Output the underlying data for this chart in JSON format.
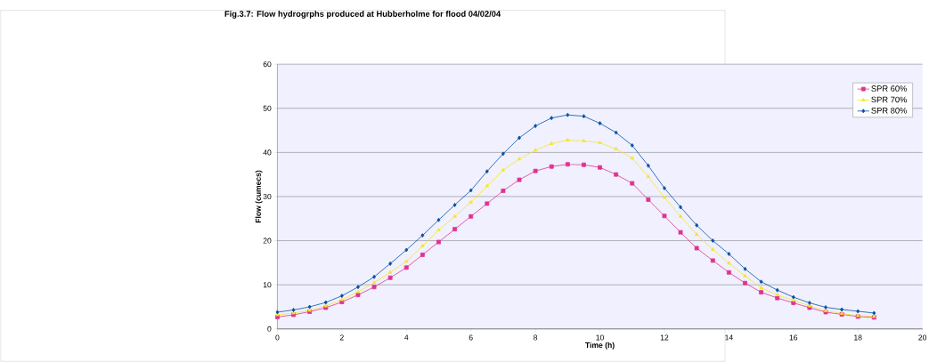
{
  "chart_data": {
    "type": "line",
    "title": "Fig.3.7: Flow hydrogrphs produced at Hubberholme for flood 04/02/04",
    "xlabel": "Time (h)",
    "ylabel": "Flow (cumecs)",
    "x": [
      0,
      0.5,
      1,
      1.5,
      2,
      2.5,
      3,
      3.5,
      4,
      4.5,
      5,
      5.5,
      6,
      6.5,
      7,
      7.5,
      8,
      8.5,
      9,
      9.5,
      10,
      10.5,
      11,
      11.5,
      12,
      12.5,
      13,
      13.5,
      14,
      14.5,
      15,
      15.5,
      16,
      16.5,
      17,
      17.5,
      18,
      18.5
    ],
    "series": [
      {
        "name": "SPR 60%",
        "color": "#e0338f",
        "marker": "square",
        "values": [
          2.7,
          3.2,
          3.9,
          4.8,
          6.1,
          7.7,
          9.5,
          11.6,
          13.9,
          16.8,
          19.7,
          22.6,
          25.5,
          28.4,
          31.3,
          33.8,
          35.8,
          36.8,
          37.3,
          37.2,
          36.6,
          35.0,
          33.0,
          29.3,
          25.6,
          21.9,
          18.3,
          15.5,
          12.8,
          10.4,
          8.3,
          7.0,
          5.9,
          4.8,
          3.8,
          3.3,
          2.8,
          2.6
        ]
      },
      {
        "name": "SPR 70%",
        "color": "#f5e52a",
        "marker": "triangle",
        "values": [
          3.2,
          3.6,
          4.2,
          5.2,
          6.6,
          8.4,
          10.5,
          12.8,
          15.3,
          18.8,
          22.4,
          25.5,
          28.7,
          32.4,
          36.0,
          38.5,
          40.5,
          42.0,
          42.8,
          42.6,
          42.2,
          40.8,
          38.7,
          34.5,
          29.8,
          25.5,
          21.4,
          18.0,
          14.9,
          12.0,
          9.3,
          7.7,
          6.5,
          5.2,
          4.1,
          3.5,
          3.0,
          2.8
        ]
      },
      {
        "name": "SPR 80%",
        "color": "#0050a0",
        "marker": "diamond",
        "values": [
          3.8,
          4.3,
          5.0,
          6.0,
          7.5,
          9.5,
          11.8,
          14.8,
          17.9,
          21.2,
          24.7,
          28.1,
          31.4,
          35.7,
          39.7,
          43.3,
          46.0,
          47.8,
          48.5,
          48.2,
          46.6,
          44.5,
          41.6,
          37.0,
          31.9,
          27.6,
          23.5,
          20.0,
          17.0,
          13.6,
          10.7,
          8.8,
          7.2,
          5.9,
          4.9,
          4.4,
          4.0,
          3.6
        ]
      }
    ],
    "xlim": [
      0,
      20
    ],
    "xticks": [
      0,
      2,
      4,
      6,
      8,
      10,
      12,
      14,
      16,
      18,
      20
    ],
    "ylim": [
      0,
      60
    ],
    "yticks": [
      0,
      10,
      20,
      30,
      40,
      50,
      60
    ],
    "grid": "y",
    "legend": "top right",
    "line_style": "solid"
  }
}
